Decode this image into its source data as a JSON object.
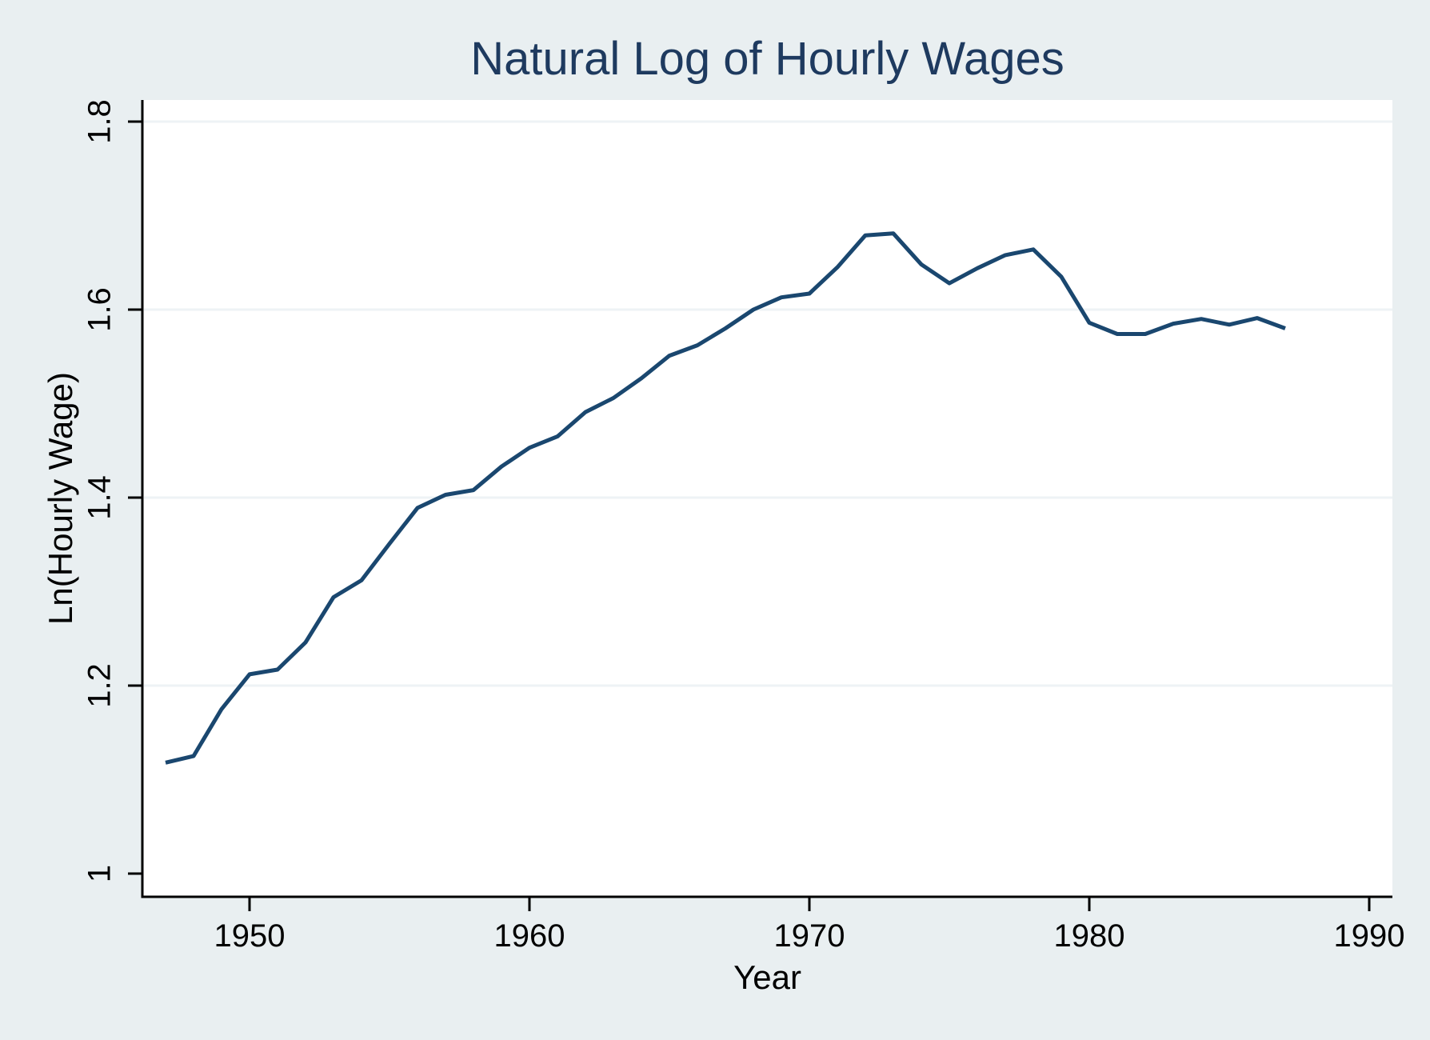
{
  "chart_data": {
    "type": "line",
    "title": "Natural Log of Hourly Wages",
    "xlabel": "Year",
    "ylabel": "Ln(Hourly Wage)",
    "x": [
      1947,
      1948,
      1949,
      1950,
      1951,
      1952,
      1953,
      1954,
      1955,
      1956,
      1957,
      1958,
      1959,
      1960,
      1961,
      1962,
      1963,
      1964,
      1965,
      1966,
      1967,
      1968,
      1969,
      1970,
      1971,
      1972,
      1973,
      1974,
      1975,
      1976,
      1977,
      1978,
      1979,
      1980,
      1981,
      1982,
      1983,
      1984,
      1985,
      1986,
      1987
    ],
    "values": [
      1.118,
      1.125,
      1.175,
      1.212,
      1.217,
      1.246,
      1.294,
      1.312,
      1.351,
      1.389,
      1.403,
      1.408,
      1.433,
      1.453,
      1.465,
      1.491,
      1.506,
      1.527,
      1.551,
      1.562,
      1.58,
      1.6,
      1.613,
      1.617,
      1.645,
      1.679,
      1.681,
      1.648,
      1.628,
      1.644,
      1.658,
      1.664,
      1.635,
      1.586,
      1.574,
      1.574,
      1.585,
      1.59,
      1.584,
      1.591,
      1.58
    ],
    "x_axis": {
      "ticks": [
        1950,
        1960,
        1970,
        1980,
        1990
      ],
      "tick_labels": [
        "1950",
        "1960",
        "1970",
        "1980",
        "1990"
      ],
      "range": [
        1946.17,
        1990.83
      ]
    },
    "y_axis": {
      "ticks": [
        1,
        1.2,
        1.4,
        1.6,
        1.8
      ],
      "tick_labels": [
        "1",
        "1.2",
        "1.4",
        "1.6",
        "1.8"
      ],
      "gridlines": [
        1.2,
        1.4,
        1.6,
        1.8
      ],
      "range": [
        0.975,
        1.823
      ]
    },
    "legend": "none",
    "grid": "horizontal-only",
    "colors": {
      "figure_background": "#e9eff1",
      "plot_background": "#ffffff",
      "series_line": "#1a476f",
      "title_text": "#1e3a5f",
      "axis_text": "#000000",
      "axis_line": "#000000",
      "gridline": "#eef3f5"
    }
  }
}
